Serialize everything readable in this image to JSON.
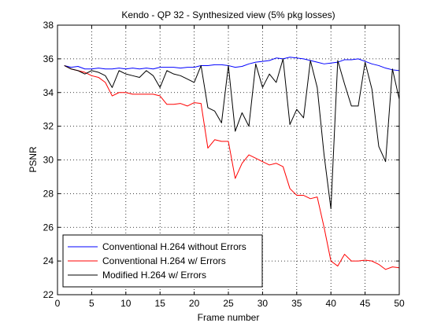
{
  "chart_data": {
    "type": "line",
    "title": "Kendo - QP 32 - Synthesized view (5% pkg losses)",
    "xlabel": "Frame number",
    "ylabel": "PSNR",
    "xlim": [
      0,
      50
    ],
    "ylim": [
      22,
      38
    ],
    "xticks": [
      0,
      5,
      10,
      15,
      20,
      25,
      30,
      35,
      40,
      45,
      50
    ],
    "yticks": [
      22,
      24,
      26,
      28,
      30,
      32,
      34,
      36,
      38
    ],
    "grid": "on (dotted)",
    "legend_position": "bottom-left",
    "x": [
      1,
      2,
      3,
      4,
      5,
      6,
      7,
      8,
      9,
      10,
      11,
      12,
      13,
      14,
      15,
      16,
      17,
      18,
      19,
      20,
      21,
      22,
      23,
      24,
      25,
      26,
      27,
      28,
      29,
      30,
      31,
      32,
      33,
      34,
      35,
      36,
      37,
      38,
      39,
      40,
      41,
      42,
      43,
      44,
      45,
      46,
      47,
      48,
      49,
      50
    ],
    "series": [
      {
        "name": "Conventional H.264 without Errors",
        "color": "#0000ff",
        "values": [
          35.6,
          35.5,
          35.55,
          35.4,
          35.4,
          35.45,
          35.4,
          35.4,
          35.45,
          35.4,
          35.45,
          35.4,
          35.45,
          35.4,
          35.5,
          35.5,
          35.5,
          35.45,
          35.5,
          35.5,
          35.6,
          35.6,
          35.65,
          35.65,
          35.6,
          35.5,
          35.55,
          35.7,
          35.8,
          35.85,
          35.9,
          36.05,
          36.0,
          36.1,
          36.05,
          36.0,
          35.9,
          35.8,
          35.7,
          35.75,
          35.8,
          35.95,
          35.95,
          36.0,
          35.85,
          35.7,
          35.6,
          35.45,
          35.35,
          35.3
        ]
      },
      {
        "name": "Conventional H.264 w/ Errors",
        "color": "#ff0000",
        "values": [
          35.6,
          35.4,
          35.3,
          35.2,
          35.0,
          34.9,
          34.6,
          33.8,
          34.0,
          34.0,
          33.9,
          33.9,
          33.9,
          33.9,
          33.8,
          33.3,
          33.3,
          33.35,
          33.2,
          33.4,
          33.35,
          30.7,
          31.2,
          31.1,
          31.1,
          28.9,
          29.8,
          30.3,
          30.1,
          29.9,
          29.7,
          29.8,
          29.6,
          28.3,
          27.9,
          27.9,
          27.7,
          27.8,
          26.0,
          24.0,
          23.7,
          24.4,
          24.0,
          24.0,
          24.05,
          24.0,
          23.8,
          23.5,
          23.65,
          23.6
        ]
      },
      {
        "name": "Modified H.264 w/ Errors",
        "color": "#000000",
        "values": [
          35.6,
          35.4,
          35.3,
          35.1,
          35.3,
          35.2,
          35.0,
          34.3,
          35.3,
          35.1,
          35.0,
          34.9,
          35.3,
          35.0,
          34.3,
          35.3,
          35.1,
          35.0,
          34.8,
          34.6,
          35.6,
          33.1,
          32.9,
          32.2,
          35.6,
          31.7,
          32.8,
          32.0,
          35.7,
          34.3,
          35.1,
          34.6,
          36.0,
          32.1,
          33.0,
          32.5,
          35.9,
          34.3,
          30.3,
          27.1,
          35.9,
          34.5,
          33.2,
          33.2,
          35.8,
          34.2,
          30.8,
          29.9,
          35.4,
          33.6
        ]
      }
    ]
  }
}
